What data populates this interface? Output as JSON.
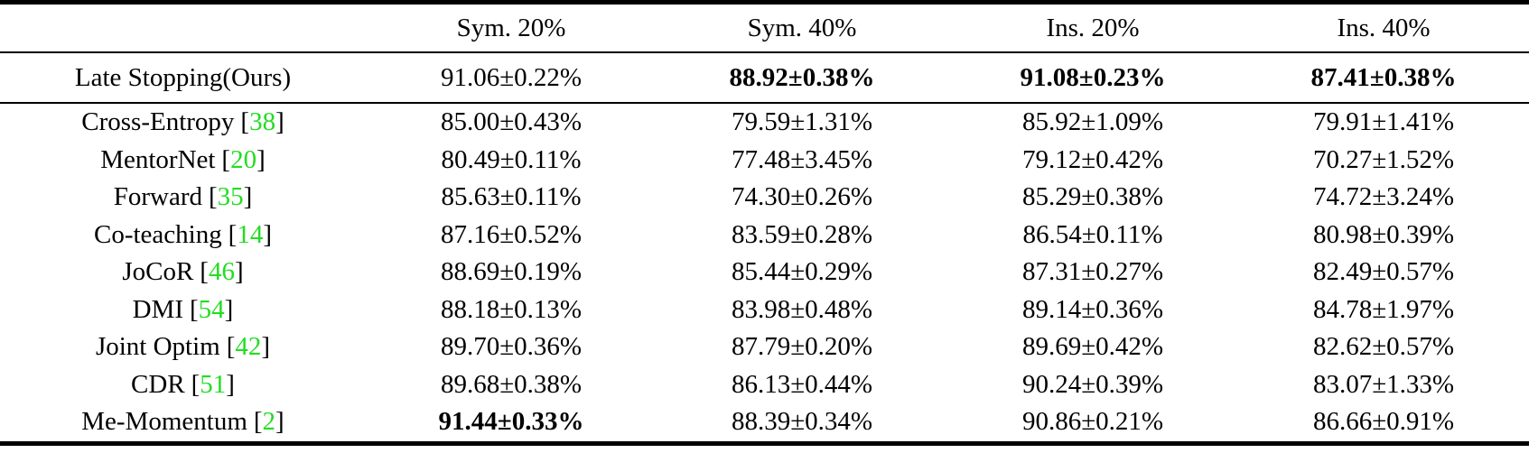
{
  "table": {
    "header": {
      "columns": [
        "",
        "Sym. 20%",
        "Sym. 40%",
        "Ins. 20%",
        "Ins. 40%"
      ]
    },
    "citation_bracket_open": "[",
    "citation_bracket_close": "]",
    "highlight_row": {
      "method": "Late Stopping(Ours)",
      "values": [
        "91.06±0.22%",
        "88.92±0.38%",
        "91.08±0.23%",
        "87.41±0.38%"
      ],
      "bold": [
        false,
        true,
        true,
        true
      ]
    },
    "rows": [
      {
        "method": "Cross-Entropy",
        "cite": "38",
        "values": [
          "85.00±0.43%",
          "79.59±1.31%",
          "85.92±1.09%",
          "79.91±1.41%"
        ],
        "bold": [
          false,
          false,
          false,
          false
        ]
      },
      {
        "method": "MentorNet",
        "cite": "20",
        "values": [
          "80.49±0.11%",
          "77.48±3.45%",
          "79.12±0.42%",
          "70.27±1.52%"
        ],
        "bold": [
          false,
          false,
          false,
          false
        ]
      },
      {
        "method": "Forward",
        "cite": "35",
        "values": [
          "85.63±0.11%",
          "74.30±0.26%",
          "85.29±0.38%",
          "74.72±3.24%"
        ],
        "bold": [
          false,
          false,
          false,
          false
        ]
      },
      {
        "method": "Co-teaching",
        "cite": "14",
        "values": [
          "87.16±0.52%",
          "83.59±0.28%",
          "86.54±0.11%",
          "80.98±0.39%"
        ],
        "bold": [
          false,
          false,
          false,
          false
        ]
      },
      {
        "method": "JoCoR",
        "cite": "46",
        "values": [
          "88.69±0.19%",
          "85.44±0.29%",
          "87.31±0.27%",
          "82.49±0.57%"
        ],
        "bold": [
          false,
          false,
          false,
          false
        ]
      },
      {
        "method": "DMI",
        "cite": "54",
        "values": [
          "88.18±0.13%",
          "83.98±0.48%",
          "89.14±0.36%",
          "84.78±1.97%"
        ],
        "bold": [
          false,
          false,
          false,
          false
        ]
      },
      {
        "method": "Joint Optim",
        "cite": "42",
        "values": [
          "89.70±0.36%",
          "87.79±0.20%",
          "89.69±0.42%",
          "82.62±0.57%"
        ],
        "bold": [
          false,
          false,
          false,
          false
        ]
      },
      {
        "method": "CDR",
        "cite": "51",
        "values": [
          "89.68±0.38%",
          "86.13±0.44%",
          "90.24±0.39%",
          "83.07±1.33%"
        ],
        "bold": [
          false,
          false,
          false,
          false
        ]
      },
      {
        "method": "Me-Momentum",
        "cite": "2",
        "values": [
          "91.44±0.33%",
          "88.39±0.34%",
          "90.86±0.21%",
          "86.66±0.91%"
        ],
        "bold": [
          true,
          false,
          false,
          false
        ]
      }
    ],
    "colors": {
      "text": "#000000",
      "citation_green": "#22dd22",
      "rule": "#000000",
      "background": "#ffffff"
    }
  }
}
